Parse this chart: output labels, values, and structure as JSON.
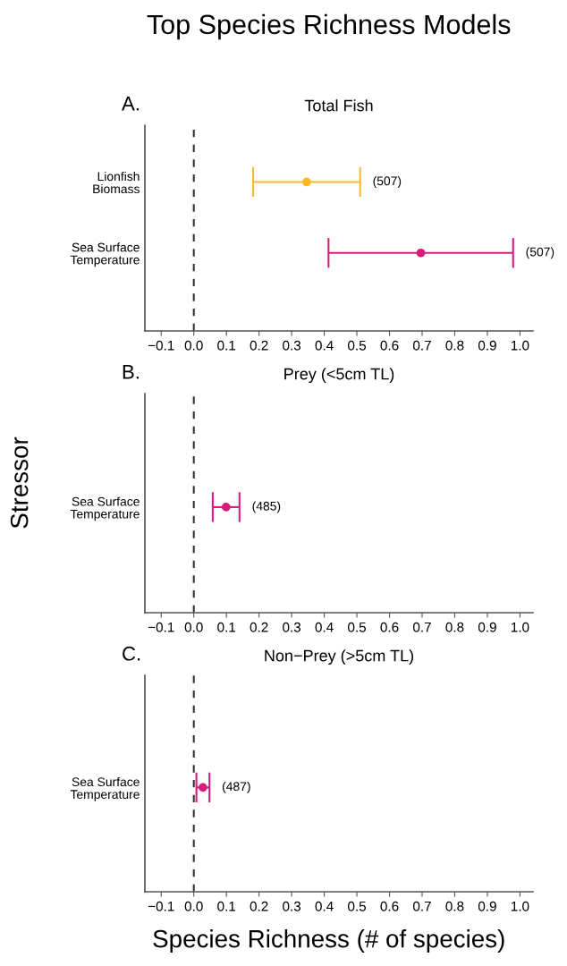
{
  "chart_data": [
    {
      "type": "scatter",
      "orientation": "horizontal",
      "title": "Top Species Richness Models",
      "subtitle": "Total Fish",
      "annotations": [
        "A.",
        "(507)",
        "(507)"
      ],
      "categories": [
        "Lionfish\nBiomass",
        "Sea Surface\nTemperature"
      ],
      "values": [
        0.346,
        0.696
      ],
      "errors": [
        0.164,
        0.283
      ],
      "colors": [
        "#fdb92c",
        "#d81b7a"
      ],
      "xlim": [
        -0.15,
        1.04
      ],
      "xticks": [
        {
          "value": -0.1,
          "label": "−0.1"
        },
        {
          "value": 0,
          "label": "0.0"
        },
        0.1,
        0.2,
        0.3,
        0.4,
        0.5,
        0.6,
        0.7,
        0.8,
        0.9,
        {
          "value": 1,
          "label": "1.0"
        }
      ],
      "ref_lines": [
        {
          "axis": "x",
          "value": 0,
          "line_style": "dashed",
          "color": "#333333"
        }
      ],
      "marker": "circle",
      "grid": false,
      "legend": false
    },
    {
      "type": "scatter",
      "orientation": "horizontal",
      "subtitle": "Prey (<5cm TL)",
      "ylabel": "Stressor",
      "annotations": [
        "B.",
        "(485)"
      ],
      "categories": [
        "Sea Surface\nTemperature"
      ],
      "values": [
        0.099
      ],
      "errors": [
        0.041
      ],
      "colors": [
        "#d81b7a"
      ],
      "xlim": [
        -0.15,
        1.04
      ],
      "xticks": [
        {
          "value": -0.1,
          "label": "−0.1"
        },
        {
          "value": 0,
          "label": "0.0"
        },
        0.1,
        0.2,
        0.3,
        0.4,
        0.5,
        0.6,
        0.7,
        0.8,
        0.9,
        {
          "value": 1,
          "label": "1.0"
        }
      ],
      "ref_lines": [
        {
          "axis": "x",
          "value": 0,
          "line_style": "dashed",
          "color": "#333333"
        }
      ],
      "marker": "circle",
      "grid": false,
      "legend": false
    },
    {
      "type": "scatter",
      "orientation": "horizontal",
      "subtitle": "Non−Prey (>5cm TL)",
      "xlabel": "Species Richness (# of species)",
      "annotations": [
        "C.",
        "(487)"
      ],
      "categories": [
        "Sea Surface\nTemperature"
      ],
      "values": [
        0.028
      ],
      "errors": [
        0.02
      ],
      "colors": [
        "#d81b7a"
      ],
      "xlim": [
        -0.15,
        1.04
      ],
      "xticks": [
        {
          "value": -0.1,
          "label": "−0.1"
        },
        {
          "value": 0,
          "label": "0.0"
        },
        0.1,
        0.2,
        0.3,
        0.4,
        0.5,
        0.6,
        0.7,
        0.8,
        0.9,
        {
          "value": 1,
          "label": "1.0"
        }
      ],
      "ref_lines": [
        {
          "axis": "x",
          "value": 0,
          "line_style": "dashed",
          "color": "#333333"
        }
      ],
      "marker": "circle",
      "grid": false,
      "legend": false
    }
  ]
}
